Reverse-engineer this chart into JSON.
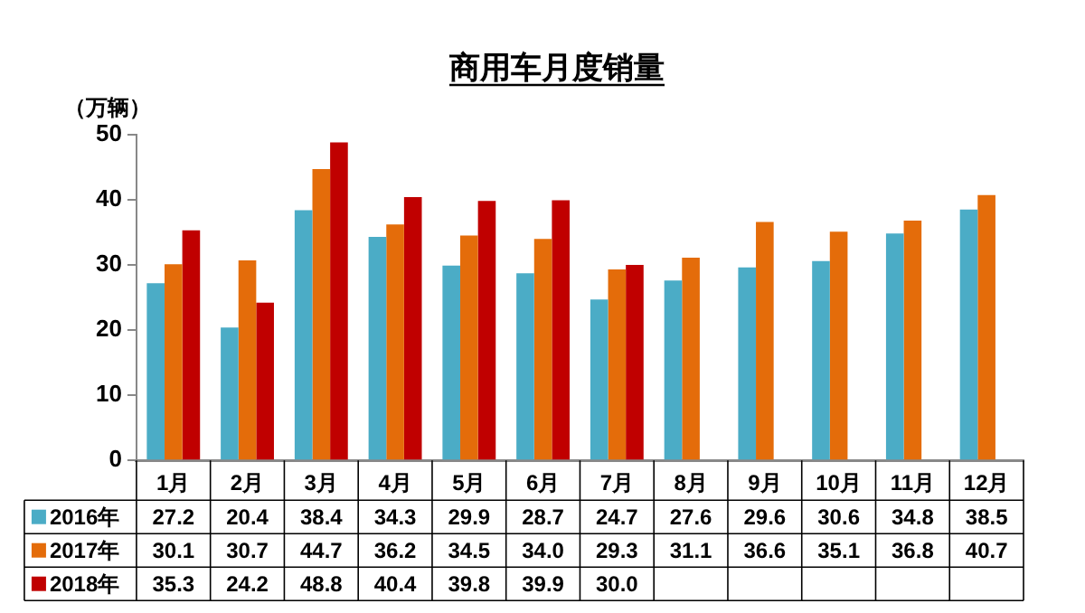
{
  "chart_data": {
    "type": "bar",
    "title": "商用车月度销量",
    "ylabel": "（万辆）",
    "categories": [
      "1月",
      "2月",
      "3月",
      "4月",
      "5月",
      "6月",
      "7月",
      "8月",
      "9月",
      "10月",
      "11月",
      "12月"
    ],
    "series": [
      {
        "name": "2016年",
        "color": "#4bacc6",
        "values": [
          27.2,
          20.4,
          38.4,
          34.3,
          29.9,
          28.7,
          24.7,
          27.6,
          29.6,
          30.6,
          34.8,
          38.5
        ],
        "value_labels": [
          "27.2",
          "20.4",
          "38.4",
          "34.3",
          "29.9",
          "28.7",
          "24.7",
          "27.6",
          "29.6",
          "30.6",
          "34.8",
          "38.5"
        ]
      },
      {
        "name": "2017年",
        "color": "#e46c0a",
        "values": [
          30.1,
          30.7,
          44.7,
          36.2,
          34.5,
          34.0,
          29.3,
          31.1,
          36.6,
          35.1,
          36.8,
          40.7
        ],
        "value_labels": [
          "30.1",
          "30.7",
          "44.7",
          "36.2",
          "34.5",
          "34.0",
          "29.3",
          "31.1",
          "36.6",
          "35.1",
          "36.8",
          "40.7"
        ]
      },
      {
        "name": "2018年",
        "color": "#c00000",
        "values": [
          35.3,
          24.2,
          48.8,
          40.4,
          39.8,
          39.9,
          30.0,
          null,
          null,
          null,
          null,
          null
        ],
        "value_labels": [
          "35.3",
          "24.2",
          "48.8",
          "40.4",
          "39.8",
          "39.9",
          "30.0",
          null,
          null,
          null,
          null,
          null
        ]
      }
    ],
    "ylim": [
      0,
      50
    ],
    "yticks": [
      0,
      10,
      20,
      30,
      40,
      50
    ],
    "grid": false,
    "legend": "bottom"
  }
}
